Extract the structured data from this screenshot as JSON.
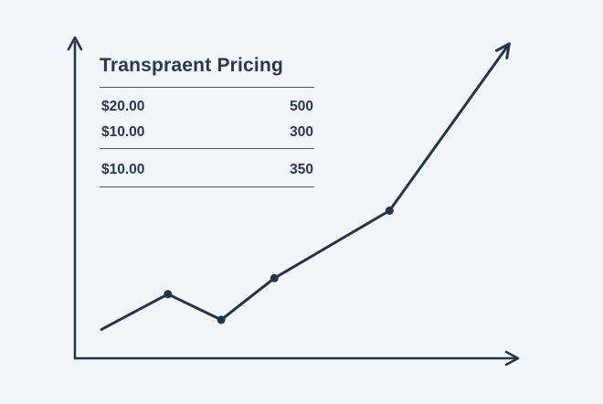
{
  "colors": {
    "background": "#f2f6fb",
    "ink": "#27384f",
    "line": "#24344a"
  },
  "pricing_table": {
    "title": "Transpraent Pricing",
    "rows": [
      {
        "price": "$20.00",
        "quantity": "500"
      },
      {
        "price": "$10.00",
        "quantity": "300"
      },
      {
        "price": "$10.00",
        "quantity": "350"
      }
    ]
  },
  "chart_data": {
    "type": "line",
    "title": "",
    "xlabel": "",
    "ylabel": "",
    "grid": false,
    "axes_tick_labels": false,
    "xlim": [
      0,
      100
    ],
    "ylim": [
      0,
      100
    ],
    "series": [
      {
        "points": [
          {
            "x": 6,
            "y": 9,
            "marker": false
          },
          {
            "x": 21,
            "y": 20,
            "marker": true
          },
          {
            "x": 33,
            "y": 12,
            "marker": true
          },
          {
            "x": 45,
            "y": 25,
            "marker": true
          },
          {
            "x": 71,
            "y": 46,
            "marker": true
          },
          {
            "x": 98,
            "y": 98,
            "marker": false,
            "arrow": true
          }
        ]
      }
    ]
  }
}
